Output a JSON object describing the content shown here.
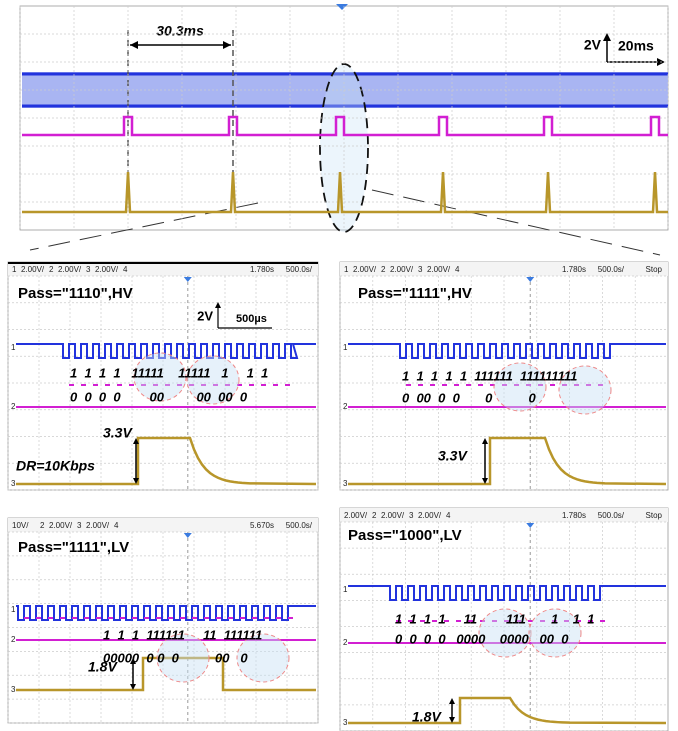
{
  "overview": {
    "time_span": "30.3ms",
    "volt_scale": "2V",
    "time_scale": "20ms"
  },
  "panels": [
    {
      "header": {
        "channels": [
          {
            "n": "1",
            "scale": "2.00V/"
          },
          {
            "n": "2",
            "scale": "2.00V/"
          },
          {
            "n": "3",
            "scale": "2.00V/"
          },
          {
            "n": "4"
          }
        ],
        "right": [
          "1.780s",
          "500.0s/"
        ]
      },
      "title": "Pass=\"1110\",HV",
      "volt_scale": "2V",
      "time_scale": "500µs",
      "bits_high": "1  1  1  1   11111    11111   1     1  1",
      "bits_low": "0  0  0  0        00         00  00  0",
      "voltage": "3.3V",
      "note": "DR=10Kbps",
      "markers": [
        "1",
        "2",
        "3"
      ]
    },
    {
      "header": {
        "channels": [
          {
            "n": "1",
            "scale": "2.00V/"
          },
          {
            "n": "2",
            "scale": "2.00V/"
          },
          {
            "n": "3",
            "scale": "2.00V/"
          },
          {
            "n": "4"
          }
        ],
        "right": [
          "1.780s",
          "500.0s/",
          "Stop"
        ]
      },
      "title": "Pass=\"1111\",HV",
      "bits_high": "1  1  1  1  1  111111  111111111",
      "bits_low": "0  00  0  0       0          0",
      "voltage": "3.3V",
      "markers": [
        "1",
        "2",
        "3"
      ]
    },
    {
      "header": {
        "channels": [
          {
            "scale": "10V/"
          },
          {
            "n": "2",
            "scale": "2.00V/"
          },
          {
            "n": "3",
            "scale": "2.00V/"
          },
          {
            "n": "4"
          }
        ],
        "right": [
          "5.670s",
          "500.0s/"
        ]
      },
      "title": "Pass=\"1111\",LV",
      "bits_high": "1  1  1  111111     11  111111",
      "bits_low": "00000  0 0  0          00   0",
      "voltage": "1.8V",
      "markers": [
        "1",
        "2",
        "3"
      ]
    },
    {
      "header": {
        "channels": [
          {
            "scale": "2.00V/"
          },
          {
            "n": "2",
            "scale": "2.00V/"
          },
          {
            "n": "3",
            "scale": "2.00V/"
          },
          {
            "n": "4"
          }
        ],
        "right": [
          "1.780s",
          "500.0s/",
          "Stop"
        ]
      },
      "title": "Pass=\"1000\",LV",
      "bits_high": "1  1  1  1     11        111       1    1  1",
      "bits_low": "0  0  0  0   0000    0000   00  0",
      "voltage": "1.8V",
      "markers": [
        "1",
        "2",
        "3"
      ]
    }
  ]
}
